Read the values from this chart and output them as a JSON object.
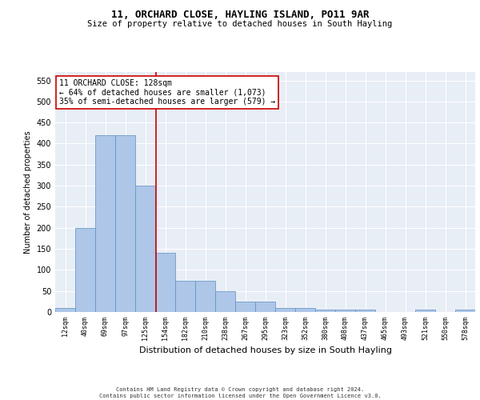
{
  "title1": "11, ORCHARD CLOSE, HAYLING ISLAND, PO11 9AR",
  "title2": "Size of property relative to detached houses in South Hayling",
  "xlabel": "Distribution of detached houses by size in South Hayling",
  "ylabel": "Number of detached properties",
  "bin_labels": [
    "12sqm",
    "40sqm",
    "69sqm",
    "97sqm",
    "125sqm",
    "154sqm",
    "182sqm",
    "210sqm",
    "238sqm",
    "267sqm",
    "295sqm",
    "323sqm",
    "352sqm",
    "380sqm",
    "408sqm",
    "437sqm",
    "465sqm",
    "493sqm",
    "521sqm",
    "550sqm",
    "578sqm"
  ],
  "bar_values": [
    10,
    200,
    420,
    420,
    300,
    140,
    75,
    75,
    50,
    25,
    25,
    10,
    10,
    5,
    5,
    5,
    0,
    0,
    5,
    0,
    5
  ],
  "bar_color": "#aec6e8",
  "bar_edgecolor": "#5a8fc2",
  "bg_color": "#e8eef6",
  "grid_color": "#ffffff",
  "vline_x": 4.55,
  "vline_color": "#cc0000",
  "annotation_text": "11 ORCHARD CLOSE: 128sqm\n← 64% of detached houses are smaller (1,073)\n35% of semi-detached houses are larger (579) →",
  "annotation_box_color": "#ffffff",
  "annotation_box_edgecolor": "#cc0000",
  "ylim": [
    0,
    570
  ],
  "yticks": [
    0,
    50,
    100,
    150,
    200,
    250,
    300,
    350,
    400,
    450,
    500,
    550
  ],
  "footer": "Contains HM Land Registry data © Crown copyright and database right 2024.\nContains public sector information licensed under the Open Government Licence v3.0.",
  "title1_fontsize": 9,
  "title2_fontsize": 7.5,
  "xlabel_fontsize": 8,
  "ylabel_fontsize": 7,
  "tick_fontsize": 6,
  "ytick_fontsize": 7,
  "annot_fontsize": 7,
  "footer_fontsize": 5
}
